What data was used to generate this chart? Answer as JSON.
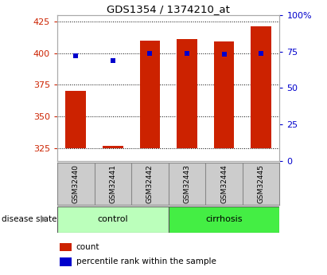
{
  "title": "GDS1354 / 1374210_at",
  "samples": [
    "GSM32440",
    "GSM32441",
    "GSM32442",
    "GSM32443",
    "GSM32444",
    "GSM32445"
  ],
  "count_values": [
    370,
    327,
    410,
    411,
    409,
    421
  ],
  "count_base": 325,
  "percentile_values": [
    72,
    69,
    74,
    74,
    73,
    74
  ],
  "ylim_left": [
    315,
    430
  ],
  "ylim_right": [
    0,
    100
  ],
  "yticks_left": [
    325,
    350,
    375,
    400,
    425
  ],
  "yticks_right": [
    0,
    25,
    50,
    75,
    100
  ],
  "bar_color": "#cc2200",
  "dot_color": "#0000cc",
  "groups": [
    {
      "label": "control",
      "samples": [
        0,
        1,
        2
      ],
      "color": "#bbffbb"
    },
    {
      "label": "cirrhosis",
      "samples": [
        3,
        4,
        5
      ],
      "color": "#44ee44"
    }
  ],
  "bg_color": "#ffffff",
  "plot_bg": "#ffffff",
  "tick_color_left": "#cc2200",
  "tick_color_right": "#0000cc",
  "grid_color": "#000000",
  "disease_state_label": "disease state",
  "legend_count": "count",
  "legend_percentile": "percentile rank within the sample",
  "sample_box_color": "#cccccc",
  "sample_box_border": "#888888"
}
